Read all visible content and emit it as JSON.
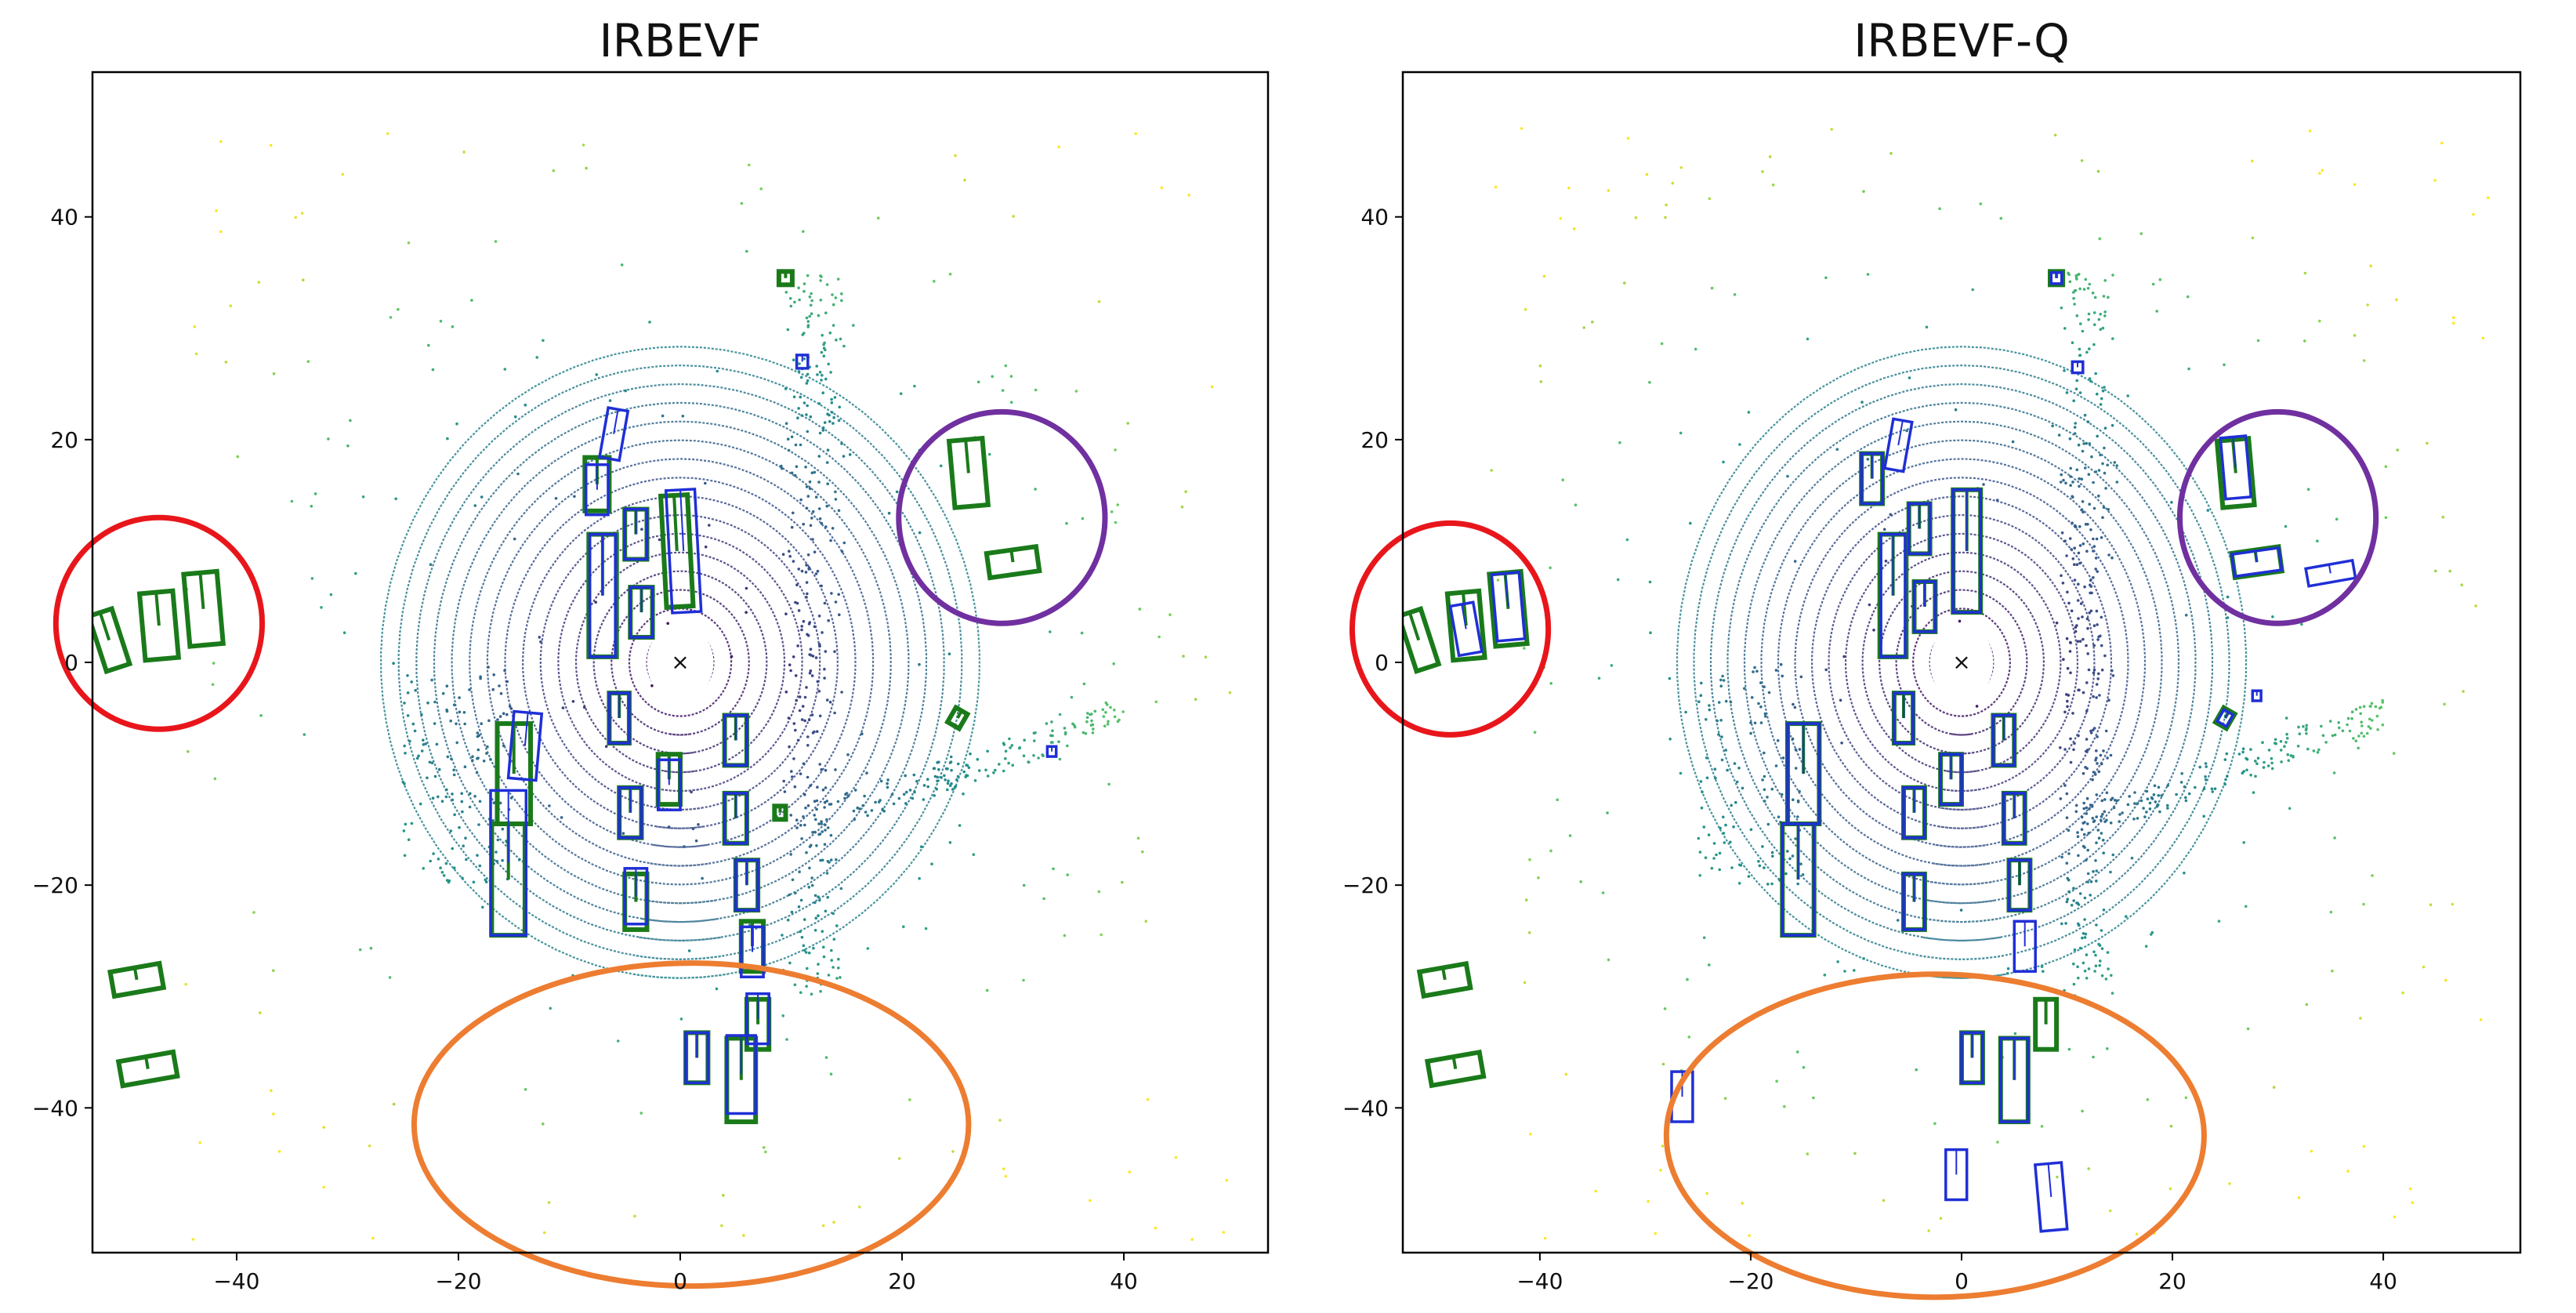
{
  "chart_data": [
    {
      "type": "scatter",
      "title": "IRBEVF",
      "xlim": [
        -53,
        53
      ],
      "ylim": [
        -53,
        53
      ],
      "x_ticks": [
        "−40",
        "−20",
        "0",
        "20",
        "40"
      ],
      "y_ticks": [
        "40",
        "20",
        "0",
        "−20",
        "−40"
      ],
      "x_tick_values": [
        -40,
        -20,
        0,
        20,
        40
      ],
      "y_tick_values": [
        40,
        20,
        0,
        -20,
        -40
      ],
      "grid": false,
      "colors": {
        "ground_truth": "#1a7a1a",
        "prediction": "#1f2fd6"
      },
      "ground_truth_boxes": [
        {
          "x": -51.5,
          "y": 2.0,
          "w": 2.2,
          "h": 5.2,
          "angle": -18
        },
        {
          "x": -47.0,
          "y": 3.3,
          "w": 3.0,
          "h": 6.0,
          "angle": -5
        },
        {
          "x": -43.0,
          "y": 4.8,
          "w": 3.0,
          "h": 6.5,
          "angle": -5
        },
        {
          "x": -49.0,
          "y": -28.5,
          "w": 4.5,
          "h": 2.2,
          "angle": -10
        },
        {
          "x": -48.0,
          "y": -36.5,
          "w": 5.0,
          "h": 2.2,
          "angle": -10
        },
        {
          "x": -7.5,
          "y": 16.0,
          "w": 2.2,
          "h": 4.8,
          "angle": 0
        },
        {
          "x": -4.0,
          "y": 11.5,
          "w": 2.0,
          "h": 4.5,
          "angle": 0
        },
        {
          "x": -0.3,
          "y": 10.0,
          "w": 2.4,
          "h": 10.0,
          "angle": -3
        },
        {
          "x": -7.0,
          "y": 6.0,
          "w": 2.5,
          "h": 11.0,
          "angle": 0
        },
        {
          "x": -3.5,
          "y": 4.5,
          "w": 2.0,
          "h": 4.5,
          "angle": 0
        },
        {
          "x": -5.5,
          "y": -5.0,
          "w": 1.8,
          "h": 4.5,
          "angle": 0
        },
        {
          "x": -15.0,
          "y": -10.0,
          "w": 3.0,
          "h": 9.0,
          "angle": 0
        },
        {
          "x": -15.5,
          "y": -19.5,
          "w": 3.0,
          "h": 10.0,
          "angle": 0
        },
        {
          "x": -4.5,
          "y": -13.5,
          "w": 2.0,
          "h": 4.5,
          "angle": 0
        },
        {
          "x": -4.0,
          "y": -21.5,
          "w": 2.0,
          "h": 5.0,
          "angle": 0
        },
        {
          "x": -1.0,
          "y": -10.5,
          "w": 2.0,
          "h": 4.5,
          "angle": 0
        },
        {
          "x": 5.0,
          "y": -7.0,
          "w": 2.0,
          "h": 4.5,
          "angle": 0
        },
        {
          "x": 5.0,
          "y": -14.0,
          "w": 2.0,
          "h": 4.5,
          "angle": 0
        },
        {
          "x": 6.0,
          "y": -20.0,
          "w": 2.0,
          "h": 4.5,
          "angle": 0
        },
        {
          "x": 6.5,
          "y": -25.5,
          "w": 2.0,
          "h": 4.5,
          "angle": 0
        },
        {
          "x": 7.0,
          "y": -32.5,
          "w": 2.0,
          "h": 4.5,
          "angle": 0
        },
        {
          "x": 1.5,
          "y": -35.5,
          "w": 2.0,
          "h": 4.5,
          "angle": 0
        },
        {
          "x": 5.5,
          "y": -37.5,
          "w": 2.6,
          "h": 7.5,
          "angle": 0
        },
        {
          "x": 26.0,
          "y": 17.0,
          "w": 3.0,
          "h": 6.0,
          "angle": -5
        },
        {
          "x": 30.0,
          "y": 9.0,
          "w": 4.5,
          "h": 2.2,
          "angle": -8
        },
        {
          "x": 9.5,
          "y": 34.5,
          "w": 1.2,
          "h": 1.2,
          "angle": 0
        },
        {
          "x": 25.0,
          "y": -5.0,
          "w": 1.2,
          "h": 1.5,
          "angle": 30
        },
        {
          "x": 9.0,
          "y": -13.5,
          "w": 1.0,
          "h": 1.2,
          "angle": 0
        }
      ],
      "prediction_boxes": [
        {
          "x": -6.0,
          "y": 20.5,
          "w": 1.8,
          "h": 4.5,
          "angle": 10
        },
        {
          "x": -7.5,
          "y": 15.5,
          "w": 2.0,
          "h": 4.5,
          "angle": 0
        },
        {
          "x": -4.0,
          "y": 11.5,
          "w": 2.0,
          "h": 4.5,
          "angle": 0
        },
        {
          "x": 0.3,
          "y": 10.0,
          "w": 2.6,
          "h": 11.0,
          "angle": -3
        },
        {
          "x": -7.0,
          "y": 6.0,
          "w": 2.3,
          "h": 11.0,
          "angle": 0
        },
        {
          "x": -3.5,
          "y": 4.5,
          "w": 2.0,
          "h": 4.5,
          "angle": 0
        },
        {
          "x": -5.5,
          "y": -5.0,
          "w": 1.8,
          "h": 4.5,
          "angle": 0
        },
        {
          "x": -14.0,
          "y": -7.5,
          "w": 2.5,
          "h": 6.0,
          "angle": 5
        },
        {
          "x": -15.5,
          "y": -18.0,
          "w": 3.2,
          "h": 13.0,
          "angle": 0
        },
        {
          "x": -4.5,
          "y": -13.5,
          "w": 2.0,
          "h": 4.5,
          "angle": 0
        },
        {
          "x": -4.0,
          "y": -21.0,
          "w": 2.0,
          "h": 5.0,
          "angle": 0
        },
        {
          "x": -1.0,
          "y": -11.0,
          "w": 2.0,
          "h": 4.5,
          "angle": 0
        },
        {
          "x": 5.0,
          "y": -7.0,
          "w": 2.0,
          "h": 4.5,
          "angle": 0
        },
        {
          "x": 5.0,
          "y": -14.0,
          "w": 2.0,
          "h": 4.5,
          "angle": 0
        },
        {
          "x": 6.0,
          "y": -20.0,
          "w": 2.0,
          "h": 4.5,
          "angle": 0
        },
        {
          "x": 6.5,
          "y": -26.0,
          "w": 2.0,
          "h": 4.5,
          "angle": 0
        },
        {
          "x": 7.0,
          "y": -32.0,
          "w": 2.0,
          "h": 4.5,
          "angle": 0
        },
        {
          "x": 1.5,
          "y": -35.5,
          "w": 2.0,
          "h": 4.5,
          "angle": 0
        },
        {
          "x": 5.5,
          "y": -37.0,
          "w": 2.6,
          "h": 7.0,
          "angle": 0
        },
        {
          "x": 11.0,
          "y": 27.0,
          "w": 1.0,
          "h": 1.2,
          "angle": 0
        },
        {
          "x": 33.5,
          "y": -8.0,
          "w": 0.8,
          "h": 0.9,
          "angle": 0
        }
      ],
      "highlight_circles": [
        {
          "color": "#e8161b",
          "cx": -47.0,
          "cy": 3.5,
          "rx": 9.3,
          "ry": 9.5
        },
        {
          "color": "#7030a0",
          "cx": 29.0,
          "cy": 13.0,
          "rx": 9.3,
          "ry": 9.5
        },
        {
          "color": "#ed7d31",
          "cx": 1.0,
          "cy": -41.5,
          "rx": 25.0,
          "ry": 14.5
        }
      ]
    },
    {
      "type": "scatter",
      "title": "IRBEVF-Q",
      "xlim": [
        -53,
        53
      ],
      "ylim": [
        -53,
        53
      ],
      "x_ticks": [
        "−40",
        "−20",
        "0",
        "20",
        "40"
      ],
      "y_ticks": [
        "40",
        "20",
        "0",
        "−20",
        "−40"
      ],
      "x_tick_values": [
        -40,
        -20,
        0,
        20,
        40
      ],
      "y_tick_values": [
        40,
        20,
        0,
        -20,
        -40
      ],
      "grid": false,
      "colors": {
        "ground_truth": "#1a7a1a",
        "prediction": "#1f2fd6"
      },
      "ground_truth_boxes": [
        {
          "x": -51.5,
          "y": 2.0,
          "w": 2.2,
          "h": 5.2,
          "angle": -18
        },
        {
          "x": -47.0,
          "y": 3.3,
          "w": 3.0,
          "h": 6.0,
          "angle": -5
        },
        {
          "x": -43.0,
          "y": 4.8,
          "w": 3.0,
          "h": 6.5,
          "angle": -5
        },
        {
          "x": -49.0,
          "y": -28.5,
          "w": 4.5,
          "h": 2.2,
          "angle": -10
        },
        {
          "x": -48.0,
          "y": -36.5,
          "w": 5.0,
          "h": 2.2,
          "angle": -10
        },
        {
          "x": -8.5,
          "y": 16.5,
          "w": 2.0,
          "h": 4.5,
          "angle": 0
        },
        {
          "x": -4.0,
          "y": 12.0,
          "w": 2.0,
          "h": 4.5,
          "angle": 0
        },
        {
          "x": 0.5,
          "y": 10.0,
          "w": 2.6,
          "h": 11.0,
          "angle": 0
        },
        {
          "x": -6.5,
          "y": 6.0,
          "w": 2.5,
          "h": 11.0,
          "angle": 0
        },
        {
          "x": -3.5,
          "y": 5.0,
          "w": 2.0,
          "h": 4.5,
          "angle": 0
        },
        {
          "x": -5.5,
          "y": -5.0,
          "w": 1.8,
          "h": 4.5,
          "angle": 0
        },
        {
          "x": -15.0,
          "y": -10.0,
          "w": 3.0,
          "h": 9.0,
          "angle": 0
        },
        {
          "x": -15.5,
          "y": -19.5,
          "w": 3.0,
          "h": 10.0,
          "angle": 0
        },
        {
          "x": -4.5,
          "y": -13.5,
          "w": 2.0,
          "h": 4.5,
          "angle": 0
        },
        {
          "x": -4.5,
          "y": -21.5,
          "w": 2.0,
          "h": 5.0,
          "angle": 0
        },
        {
          "x": -1.0,
          "y": -10.5,
          "w": 2.0,
          "h": 4.5,
          "angle": 0
        },
        {
          "x": 4.0,
          "y": -7.0,
          "w": 2.0,
          "h": 4.5,
          "angle": 0
        },
        {
          "x": 5.0,
          "y": -14.0,
          "w": 2.0,
          "h": 4.5,
          "angle": 0
        },
        {
          "x": 5.5,
          "y": -20.0,
          "w": 2.0,
          "h": 4.5,
          "angle": 0
        },
        {
          "x": 8.0,
          "y": -32.5,
          "w": 2.0,
          "h": 4.5,
          "angle": 0
        },
        {
          "x": 1.0,
          "y": -35.5,
          "w": 2.0,
          "h": 4.5,
          "angle": 0
        },
        {
          "x": 5.0,
          "y": -37.5,
          "w": 2.6,
          "h": 7.5,
          "angle": 0
        },
        {
          "x": 26.0,
          "y": 17.0,
          "w": 3.0,
          "h": 6.0,
          "angle": -5
        },
        {
          "x": 28.0,
          "y": 9.0,
          "w": 4.5,
          "h": 2.2,
          "angle": -8
        },
        {
          "x": 9.0,
          "y": 34.5,
          "w": 1.2,
          "h": 1.2,
          "angle": 0
        },
        {
          "x": 25.0,
          "y": -5.0,
          "w": 1.2,
          "h": 1.5,
          "angle": 30
        }
      ],
      "prediction_boxes": [
        {
          "x": -6.0,
          "y": 19.5,
          "w": 1.8,
          "h": 4.5,
          "angle": 10
        },
        {
          "x": -8.5,
          "y": 16.5,
          "w": 2.0,
          "h": 4.5,
          "angle": 0
        },
        {
          "x": -4.0,
          "y": 12.0,
          "w": 2.0,
          "h": 4.5,
          "angle": 0
        },
        {
          "x": 0.5,
          "y": 10.0,
          "w": 2.6,
          "h": 11.0,
          "angle": 0
        },
        {
          "x": -6.5,
          "y": 6.0,
          "w": 2.3,
          "h": 11.0,
          "angle": 0
        },
        {
          "x": -3.5,
          "y": 5.0,
          "w": 2.0,
          "h": 4.5,
          "angle": 0
        },
        {
          "x": -5.5,
          "y": -5.0,
          "w": 1.8,
          "h": 4.5,
          "angle": 0
        },
        {
          "x": -15.0,
          "y": -10.0,
          "w": 3.0,
          "h": 9.0,
          "angle": 0
        },
        {
          "x": -15.5,
          "y": -19.5,
          "w": 3.0,
          "h": 10.0,
          "angle": 0
        },
        {
          "x": -4.5,
          "y": -13.5,
          "w": 2.0,
          "h": 4.5,
          "angle": 0
        },
        {
          "x": -4.5,
          "y": -21.5,
          "w": 2.0,
          "h": 5.0,
          "angle": 0
        },
        {
          "x": -1.0,
          "y": -10.5,
          "w": 2.0,
          "h": 4.5,
          "angle": 0
        },
        {
          "x": 4.0,
          "y": -7.0,
          "w": 2.0,
          "h": 4.5,
          "angle": 0
        },
        {
          "x": 5.0,
          "y": -14.0,
          "w": 2.0,
          "h": 4.5,
          "angle": 0
        },
        {
          "x": 5.5,
          "y": -20.0,
          "w": 2.0,
          "h": 4.5,
          "angle": 0
        },
        {
          "x": 6.0,
          "y": -25.5,
          "w": 2.0,
          "h": 4.5,
          "angle": 0
        },
        {
          "x": 1.0,
          "y": -35.5,
          "w": 2.0,
          "h": 4.5,
          "angle": 0
        },
        {
          "x": 5.0,
          "y": -37.5,
          "w": 2.6,
          "h": 7.5,
          "angle": 0
        },
        {
          "x": -47.0,
          "y": 3.0,
          "w": 2.2,
          "h": 4.5,
          "angle": -10
        },
        {
          "x": -43.0,
          "y": 5.0,
          "w": 2.6,
          "h": 6.0,
          "angle": -5
        },
        {
          "x": 26.0,
          "y": 17.5,
          "w": 2.4,
          "h": 5.5,
          "angle": -5
        },
        {
          "x": 28.0,
          "y": 9.0,
          "w": 4.5,
          "h": 2.0,
          "angle": -8
        },
        {
          "x": 35.0,
          "y": 8.0,
          "w": 4.5,
          "h": 1.6,
          "angle": -10
        },
        {
          "x": 9.0,
          "y": 34.5,
          "w": 1.0,
          "h": 1.0,
          "angle": 0
        },
        {
          "x": 11.0,
          "y": 26.5,
          "w": 1.0,
          "h": 1.0,
          "angle": 0
        },
        {
          "x": 25.0,
          "y": -5.0,
          "w": 1.0,
          "h": 1.2,
          "angle": 30
        },
        {
          "x": 28.0,
          "y": -3.0,
          "w": 0.8,
          "h": 0.9,
          "angle": 0
        },
        {
          "x": -26.5,
          "y": -39.0,
          "w": 2.0,
          "h": 4.5,
          "angle": 0
        },
        {
          "x": -0.5,
          "y": -46.0,
          "w": 2.0,
          "h": 4.5,
          "angle": 0
        },
        {
          "x": 8.5,
          "y": -48.0,
          "w": 2.5,
          "h": 6.0,
          "angle": -5
        }
      ],
      "highlight_circles": [
        {
          "color": "#e8161b",
          "cx": -48.5,
          "cy": 3.0,
          "rx": 9.3,
          "ry": 9.5
        },
        {
          "color": "#7030a0",
          "cx": 30.0,
          "cy": 13.0,
          "rx": 9.3,
          "ry": 9.5
        },
        {
          "color": "#ed7d31",
          "cx": -2.5,
          "cy": -42.5,
          "rx": 25.5,
          "ry": 14.5
        }
      ]
    }
  ]
}
